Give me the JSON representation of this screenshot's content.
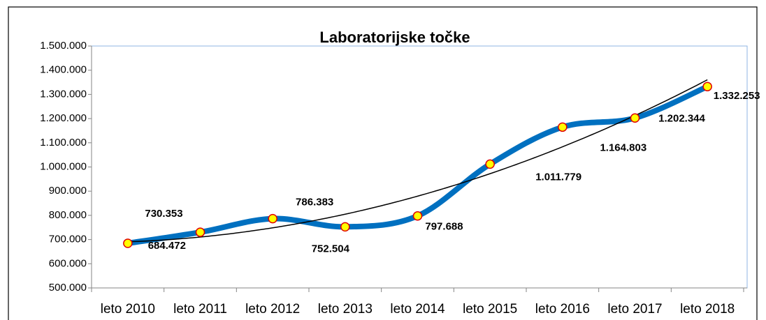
{
  "chart_data": {
    "type": "line",
    "title": "Laboratorijske točke",
    "categories": [
      "leto 2010",
      "leto 2011",
      "leto 2012",
      "leto 2013",
      "leto 2014",
      "leto 2015",
      "leto 2016",
      "leto 2017",
      "leto 2018"
    ],
    "series": [
      {
        "name": "Laboratorijske točke",
        "color": "#0070c0",
        "values": [
          684472,
          730353,
          786383,
          752504,
          797688,
          1011779,
          1164803,
          1202344,
          1332253
        ],
        "value_labels": [
          "684.472",
          "730.353",
          "786.383",
          "752.504",
          "797.688",
          "1.011.779",
          "1.164.803",
          "1.202.344",
          "1.332.253"
        ]
      }
    ],
    "marker": {
      "fill": "#ffff00",
      "stroke": "#e00000"
    },
    "smooth": true,
    "trendline": {
      "type": "polynomial",
      "order": 2,
      "color": "#000000"
    },
    "ylim": [
      500000,
      1500000
    ],
    "yticks": [
      {
        "value": 500000,
        "label": "500.000"
      },
      {
        "value": 600000,
        "label": "600.000"
      },
      {
        "value": 700000,
        "label": "700.000"
      },
      {
        "value": 800000,
        "label": "800.000"
      },
      {
        "value": 900000,
        "label": "900.000"
      },
      {
        "value": 1000000,
        "label": "1.000.000"
      },
      {
        "value": 1100000,
        "label": "1.100.000"
      },
      {
        "value": 1200000,
        "label": "1.200.000"
      },
      {
        "value": 1300000,
        "label": "1.300.000"
      },
      {
        "value": 1400000,
        "label": "1.400.000"
      },
      {
        "value": 1500000,
        "label": "1.500.000"
      }
    ],
    "grid": false
  }
}
